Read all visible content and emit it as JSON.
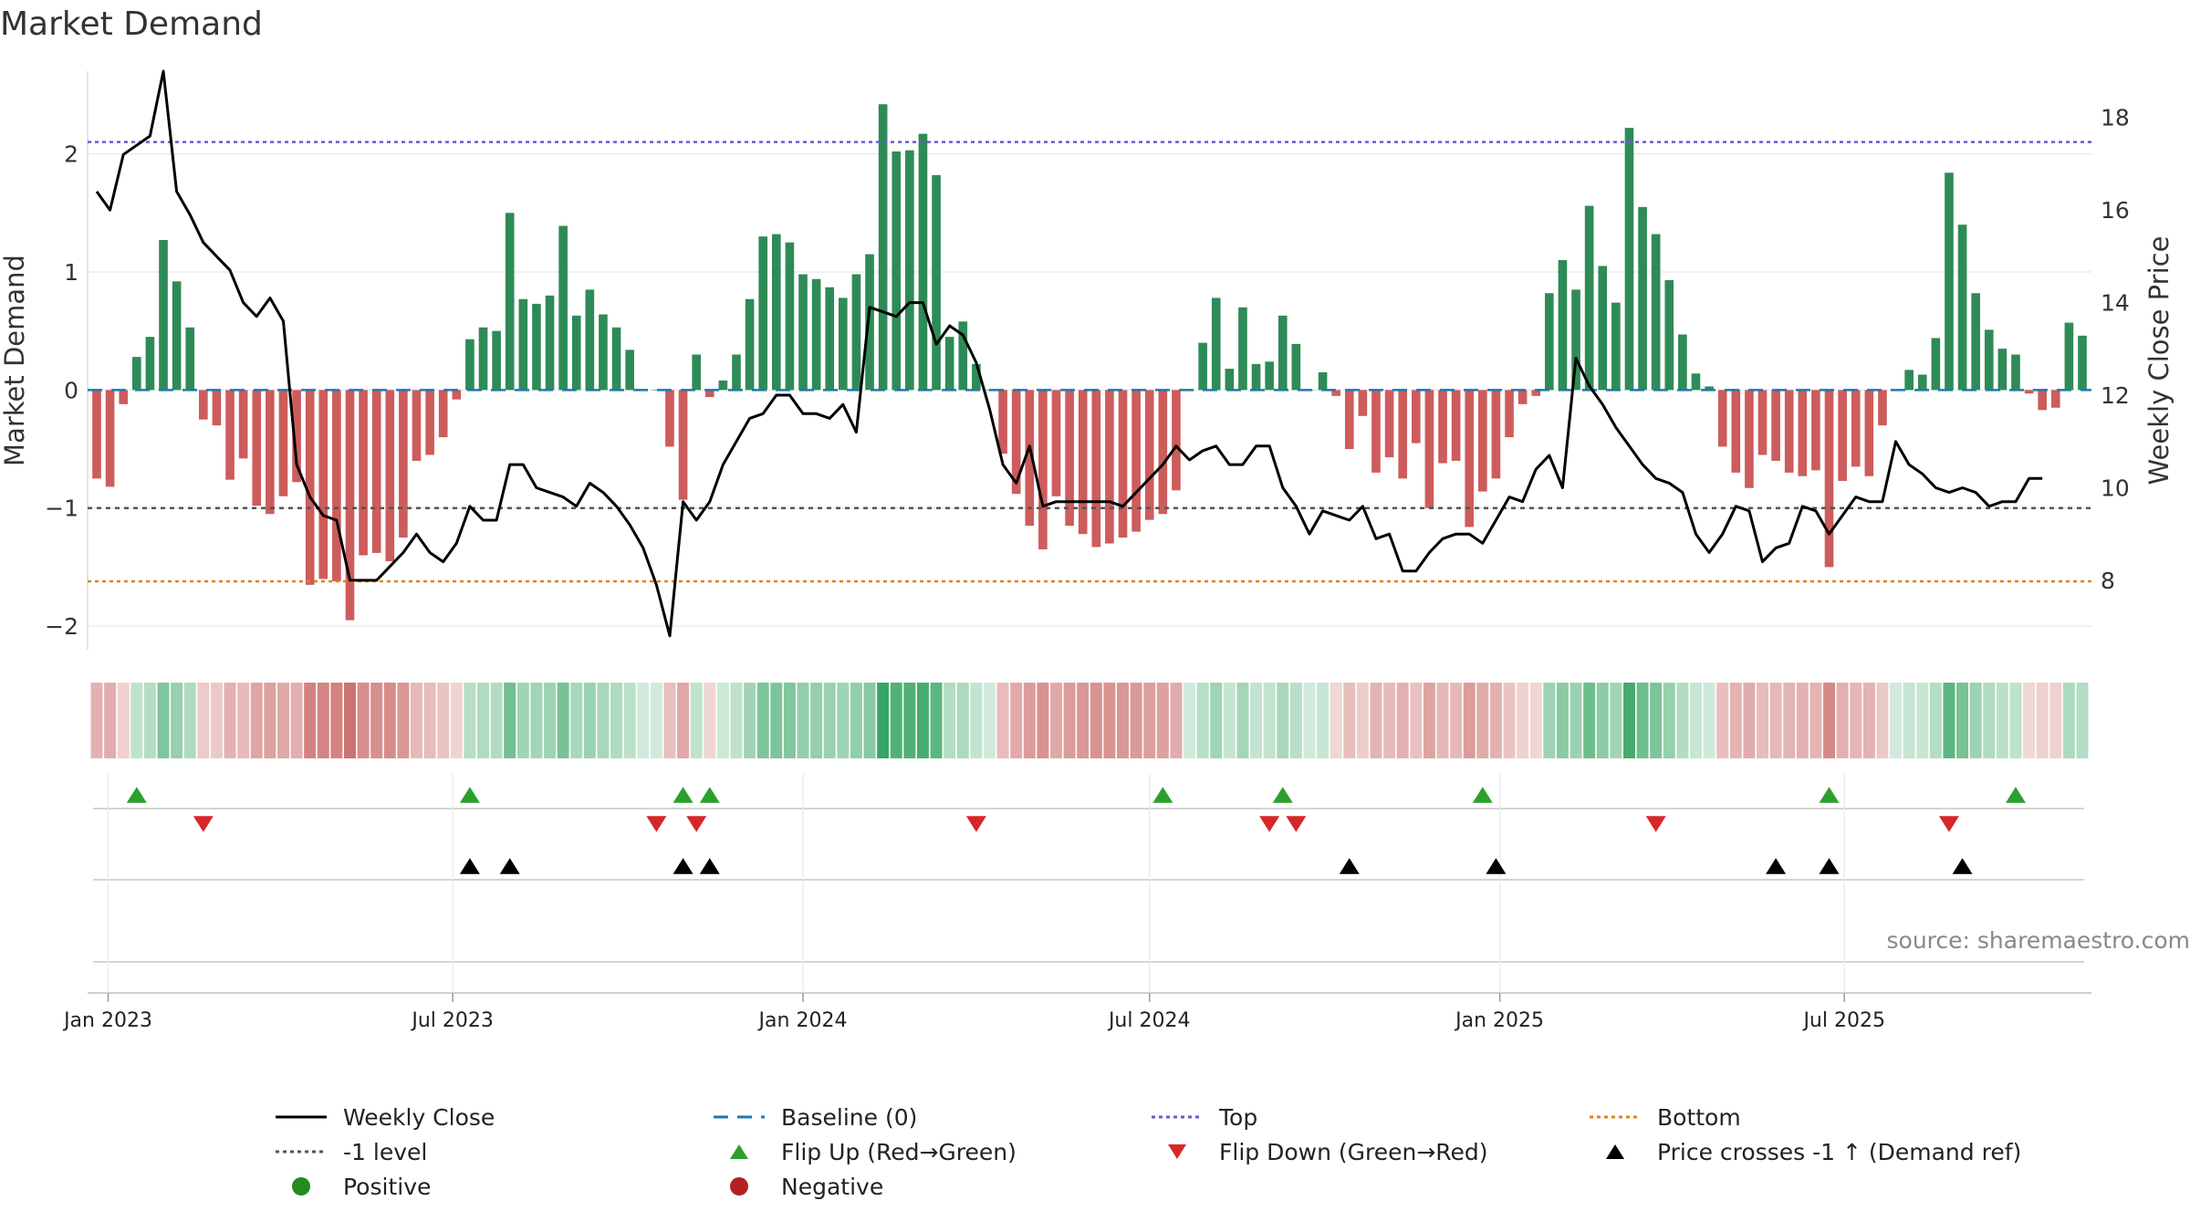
{
  "title": "Market Demand",
  "source": "source: sharemaestro.com",
  "colors": {
    "positive_bar": "#2e8b57",
    "negative_bar": "#cd5c5c",
    "close_line": "#000000",
    "baseline": "#1f77b4",
    "top_line": "#6a5acd",
    "bottom_line": "#e08214",
    "minus_one_line": "#555555",
    "flip_up": "#2ca02c",
    "flip_down": "#d62728",
    "cross_marker": "#000000"
  },
  "chart_data": {
    "type": "bar",
    "title": "Market Demand",
    "ylabel": "Market Demand",
    "y2label": "Weekly Close Price",
    "ylim": [
      -2.2,
      2.7
    ],
    "y2lim": [
      6.5,
      19.0
    ],
    "yticks": [
      2,
      1,
      0,
      -1,
      -2
    ],
    "ytick_labels": [
      "2",
      "1",
      "0",
      "−1",
      "−2"
    ],
    "y2ticks": [
      18,
      16,
      14,
      12,
      10,
      8
    ],
    "y2tick_labels": [
      "18",
      "16",
      "14",
      "12",
      "10",
      "8"
    ],
    "x_start": "2022-12-26",
    "x_step_days": 7,
    "xticks": [
      "2023-01-01",
      "2023-07-01",
      "2024-01-01",
      "2024-07-01",
      "2025-01-01",
      "2025-07-01"
    ],
    "xtick_labels": [
      "Jan 2023",
      "Jul 2023",
      "Jan 2024",
      "Jul 2024",
      "Jan 2025",
      "Jul 2025"
    ],
    "reference_lines": {
      "top": 2.1,
      "bottom": -1.62,
      "minus_one": -1.0,
      "baseline": 0
    },
    "series": [
      {
        "name": "Market Demand",
        "type": "bar",
        "values": [
          -0.75,
          -0.82,
          -0.12,
          0.28,
          0.45,
          1.27,
          0.92,
          0.53,
          -0.25,
          -0.3,
          -0.76,
          -0.58,
          -0.98,
          -1.05,
          -0.9,
          -0.78,
          -1.65,
          -1.6,
          -1.62,
          -1.95,
          -1.4,
          -1.38,
          -1.45,
          -1.25,
          -0.6,
          -0.55,
          -0.4,
          -0.08,
          0.43,
          0.53,
          0.5,
          1.5,
          0.77,
          0.73,
          0.8,
          1.39,
          0.63,
          0.85,
          0.64,
          0.53,
          0.34,
          0.0,
          0.0,
          -0.48,
          -0.93,
          0.3,
          -0.06,
          0.08,
          0.3,
          0.77,
          1.3,
          1.32,
          1.25,
          0.98,
          0.94,
          0.87,
          0.78,
          0.98,
          1.15,
          2.42,
          2.02,
          2.03,
          2.17,
          1.82,
          0.45,
          0.58,
          0.22,
          0.0,
          -0.54,
          -0.88,
          -1.15,
          -1.35,
          -0.9,
          -1.15,
          -1.22,
          -1.33,
          -1.3,
          -1.25,
          -1.2,
          -1.1,
          -1.05,
          -0.85,
          0.0,
          0.4,
          0.78,
          0.18,
          0.7,
          0.22,
          0.24,
          0.63,
          0.39,
          0.0,
          0.15,
          -0.05,
          -0.5,
          -0.22,
          -0.7,
          -0.57,
          -0.75,
          -0.45,
          -1.0,
          -0.62,
          -0.6,
          -1.16,
          -0.86,
          -0.75,
          -0.4,
          -0.12,
          -0.05,
          0.82,
          1.1,
          0.85,
          1.56,
          1.05,
          0.74,
          2.22,
          1.55,
          1.32,
          0.93,
          0.47,
          0.14,
          0.03,
          -0.48,
          -0.7,
          -0.83,
          -0.55,
          -0.6,
          -0.7,
          -0.73,
          -0.68,
          -1.5,
          -0.77,
          -0.65,
          -0.73,
          -0.3,
          0.0,
          0.17,
          0.13,
          0.44,
          1.84,
          1.4,
          0.82,
          0.51,
          0.35,
          0.3,
          -0.03,
          -0.17,
          -0.15,
          0.57,
          0.46
        ]
      },
      {
        "name": "Weekly Close",
        "type": "line",
        "axis": "right",
        "values": [
          16.4,
          16.0,
          17.2,
          17.4,
          17.6,
          19.0,
          16.4,
          15.9,
          15.3,
          15.0,
          14.7,
          14.0,
          13.7,
          14.1,
          13.6,
          10.5,
          9.8,
          9.4,
          9.3,
          8.0,
          8.0,
          8.0,
          8.3,
          8.6,
          9.0,
          8.6,
          8.4,
          8.8,
          9.6,
          9.3,
          9.3,
          10.5,
          10.5,
          10.0,
          9.9,
          9.8,
          9.6,
          10.1,
          9.9,
          9.6,
          9.2,
          8.7,
          7.9,
          6.8,
          9.7,
          9.3,
          9.7,
          10.5,
          11.0,
          11.5,
          11.6,
          12.0,
          12.0,
          11.6,
          11.6,
          11.5,
          11.8,
          11.2,
          13.9,
          13.8,
          13.7,
          14.0,
          14.0,
          13.1,
          13.5,
          13.3,
          12.7,
          11.7,
          10.5,
          10.1,
          10.9,
          9.6,
          9.7,
          9.7,
          9.7,
          9.7,
          9.7,
          9.6,
          9.9,
          10.2,
          10.5,
          10.9,
          10.6,
          10.8,
          10.9,
          10.5,
          10.5,
          10.9,
          10.9,
          10.0,
          9.6,
          9.0,
          9.5,
          9.4,
          9.3,
          9.6,
          8.9,
          9.0,
          8.2,
          8.2,
          8.6,
          8.9,
          9.0,
          9.0,
          8.8,
          9.3,
          9.8,
          9.7,
          10.4,
          10.7,
          10.0,
          12.8,
          12.2,
          11.8,
          11.3,
          10.9,
          10.5,
          10.2,
          10.1,
          9.9,
          9.0,
          8.6,
          9.0,
          9.6,
          9.5,
          8.4,
          8.7,
          8.8,
          9.6,
          9.5,
          9.0,
          9.4,
          9.8,
          9.7,
          9.7,
          11.0,
          10.5,
          10.3,
          10.0,
          9.9,
          10.0,
          9.9,
          9.6,
          9.7,
          9.7,
          10.2,
          10.2
        ]
      }
    ],
    "heat_strip": {
      "name": "Demand heat strip",
      "values_ref": "Market Demand"
    },
    "events": {
      "flip_up_weeks": [
        3,
        28,
        44,
        46,
        80,
        89,
        104,
        130,
        144
      ],
      "flip_down_weeks": [
        8,
        42,
        45,
        66,
        88,
        90,
        117,
        139
      ],
      "price_cross_weeks": [
        28,
        31,
        44,
        46,
        94,
        105,
        126,
        130,
        140
      ]
    },
    "legend": [
      {
        "label": "Weekly Close",
        "kind": "line-solid",
        "color": "#000000"
      },
      {
        "label": "Baseline (0)",
        "kind": "line-dash",
        "color": "#1f77b4"
      },
      {
        "label": "Top",
        "kind": "line-dot",
        "color": "#6a5acd"
      },
      {
        "label": "Bottom",
        "kind": "line-dot",
        "color": "#e08214"
      },
      {
        "label": "-1 level",
        "kind": "line-dot",
        "color": "#555555"
      },
      {
        "label": "Flip Up (Red→Green)",
        "kind": "triangle-up",
        "color": "#2ca02c"
      },
      {
        "label": "Flip Down (Green→Red)",
        "kind": "triangle-down",
        "color": "#d62728"
      },
      {
        "label": "Price crosses -1 ↑ (Demand ref)",
        "kind": "triangle-up",
        "color": "#000000"
      },
      {
        "label": "Positive",
        "kind": "circle",
        "color": "#228b22"
      },
      {
        "label": "Negative",
        "kind": "circle",
        "color": "#b22222"
      }
    ]
  }
}
